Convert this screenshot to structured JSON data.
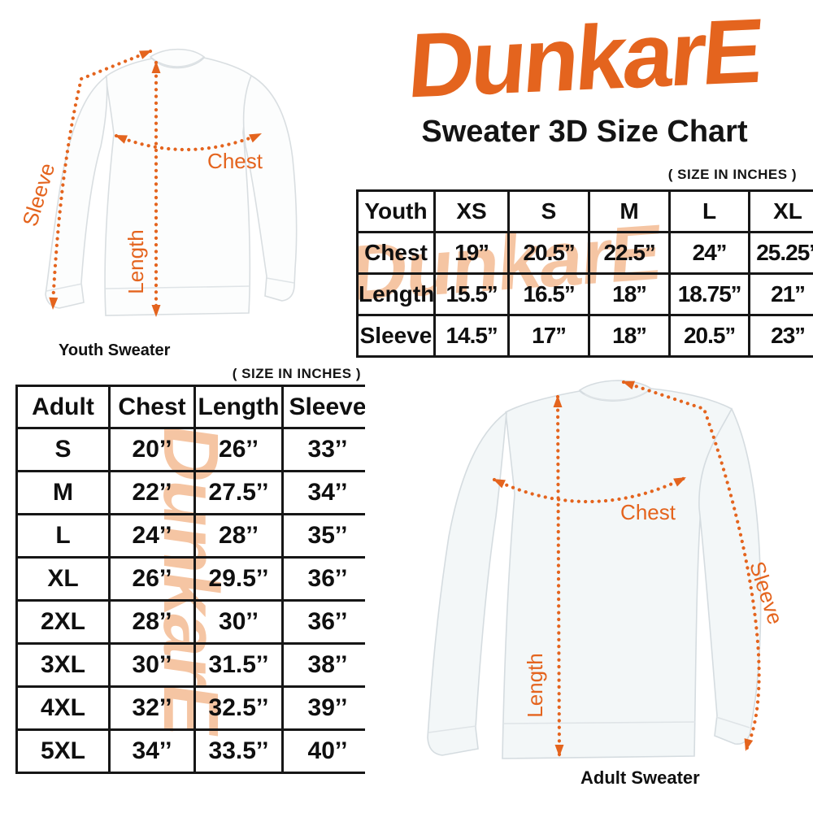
{
  "brand": {
    "logo_text": "DunkarE",
    "subtitle": "Sweater 3D Size Chart",
    "accent_color": "#E4641E",
    "watermark_color": "#F5C5A3"
  },
  "youth_diagram": {
    "caption": "Youth Sweater",
    "labels": {
      "sleeve": "Sleeve",
      "length": "Length",
      "chest": "Chest"
    }
  },
  "adult_diagram": {
    "caption": "Adult Sweater",
    "labels": {
      "sleeve": "Sleeve",
      "length": "Length",
      "chest": "Chest"
    }
  },
  "youth_table": {
    "units_note": "( SIZE IN INCHES )",
    "header": [
      "Youth",
      "XS",
      "S",
      "M",
      "L",
      "XL"
    ],
    "rows": [
      [
        "Chest",
        "19’’",
        "20.5’’",
        "22.5’’",
        "24’’",
        "25.25’’"
      ],
      [
        "Length",
        "15.5’’",
        "16.5’’",
        "18’’",
        "18.75’’",
        "21’’"
      ],
      [
        "Sleeve",
        "14.5’’",
        "17’’",
        "18’’",
        "20.5’’",
        "23’’"
      ]
    ]
  },
  "adult_table": {
    "units_note": "( SIZE IN INCHES )",
    "header": [
      "Adult",
      "Chest",
      "Length",
      "Sleeve"
    ],
    "rows": [
      [
        "S",
        "20’’",
        "26’’",
        "33’’"
      ],
      [
        "M",
        "22’’",
        "27.5’’",
        "34’’"
      ],
      [
        "L",
        "24’’",
        "28’’",
        "35’’"
      ],
      [
        "XL",
        "26’’",
        "29.5’’",
        "36’’"
      ],
      [
        "2XL",
        "28’’",
        "30’’",
        "36’’"
      ],
      [
        "3XL",
        "30’’",
        "31.5’’",
        "38’’"
      ],
      [
        "4XL",
        "32’’",
        "32.5’’",
        "39’’"
      ],
      [
        "5XL",
        "34’’",
        "33.5’’",
        "40’’"
      ]
    ]
  },
  "chart_data": [
    {
      "type": "table",
      "title": "Youth Sweater ( SIZE IN INCHES )",
      "columns": [
        "Youth",
        "XS",
        "S",
        "M",
        "L",
        "XL"
      ],
      "rows": [
        [
          "Chest",
          19,
          20.5,
          22.5,
          24,
          25.25
        ],
        [
          "Length",
          15.5,
          16.5,
          18,
          18.75,
          21
        ],
        [
          "Sleeve",
          14.5,
          17,
          18,
          20.5,
          23
        ]
      ]
    },
    {
      "type": "table",
      "title": "Adult Sweater ( SIZE IN INCHES )",
      "columns": [
        "Adult",
        "Chest",
        "Length",
        "Sleeve"
      ],
      "rows": [
        [
          "S",
          20,
          26,
          33
        ],
        [
          "M",
          22,
          27.5,
          34
        ],
        [
          "L",
          24,
          28,
          35
        ],
        [
          "XL",
          26,
          29.5,
          36
        ],
        [
          "2XL",
          28,
          30,
          36
        ],
        [
          "3XL",
          30,
          31.5,
          38
        ],
        [
          "4XL",
          32,
          32.5,
          39
        ],
        [
          "5XL",
          34,
          33.5,
          40
        ]
      ]
    }
  ]
}
